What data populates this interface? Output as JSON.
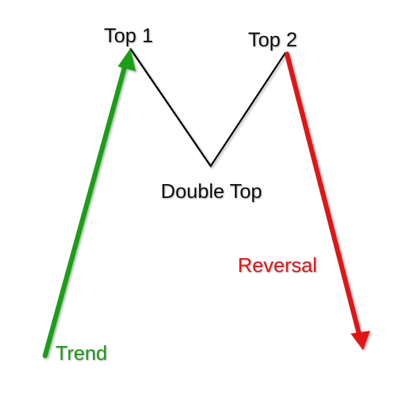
{
  "labels": {
    "top1": "Top 1",
    "top2": "Top 2",
    "double_top": "Double Top",
    "reversal": "Reversal",
    "trend": "Trend"
  },
  "colors": {
    "trend": "#1a9e14",
    "reversal": "#e01818",
    "pattern_line": "#000000",
    "text": "#111111"
  }
}
